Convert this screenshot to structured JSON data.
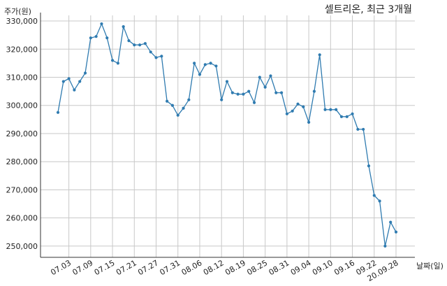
{
  "chart_data": {
    "type": "line",
    "title": "셀트리온, 최근 3개월",
    "ylabel": "주가(원)",
    "xlabel": "날짜(일)",
    "ylim": [
      246000,
      332000
    ],
    "yticks": [
      250000,
      260000,
      270000,
      280000,
      290000,
      300000,
      310000,
      320000,
      330000
    ],
    "ytick_labels": [
      "250,000",
      "260,000",
      "270,000",
      "280,000",
      "290,000",
      "300,000",
      "310,000",
      "320,000",
      "330,000"
    ],
    "xticks": [
      "07.03",
      "07.09",
      "07.15",
      "07.21",
      "07.27",
      "07.31",
      "08.06",
      "08.12",
      "08.19",
      "08.25",
      "08.31",
      "09.04",
      "09.10",
      "09.16",
      "09.22",
      "20.09.28"
    ],
    "grid": true,
    "line_color": "#2f7bb0",
    "x": [
      "07.01",
      "07.02",
      "07.03",
      "07.06",
      "07.07",
      "07.08",
      "07.09",
      "07.10",
      "07.13",
      "07.14",
      "07.15",
      "07.16",
      "07.17",
      "07.20",
      "07.21",
      "07.22",
      "07.23",
      "07.24",
      "07.27",
      "07.28",
      "07.29",
      "07.30",
      "07.31",
      "08.03",
      "08.04",
      "08.05",
      "08.06",
      "08.07",
      "08.10",
      "08.11",
      "08.12",
      "08.13",
      "08.14",
      "08.18",
      "08.19",
      "08.20",
      "08.21",
      "08.24",
      "08.25",
      "08.26",
      "08.27",
      "08.28",
      "08.31",
      "09.01",
      "09.02",
      "09.03",
      "09.04",
      "09.07",
      "09.08",
      "09.09",
      "09.10",
      "09.11",
      "09.14",
      "09.15",
      "09.16",
      "09.17",
      "09.18",
      "09.21",
      "09.22",
      "09.23",
      "09.24",
      "09.25",
      "09.28"
    ],
    "values": [
      297500,
      308500,
      309500,
      305500,
      308500,
      311500,
      324000,
      324500,
      329000,
      324000,
      316000,
      315000,
      328000,
      323000,
      321500,
      321500,
      322000,
      319000,
      317000,
      317500,
      301500,
      300000,
      296500,
      299000,
      302000,
      315000,
      311000,
      314500,
      315000,
      314000,
      302000,
      308500,
      304500,
      304000,
      304000,
      305000,
      301000,
      310000,
      306500,
      310500,
      304500,
      304500,
      297000,
      298000,
      300500,
      299500,
      294000,
      305000,
      318000,
      298500,
      298500,
      298500,
      296000,
      296000,
      297000,
      291500,
      291500,
      278500,
      268000,
      266000,
      250000,
      258500,
      255000
    ]
  }
}
